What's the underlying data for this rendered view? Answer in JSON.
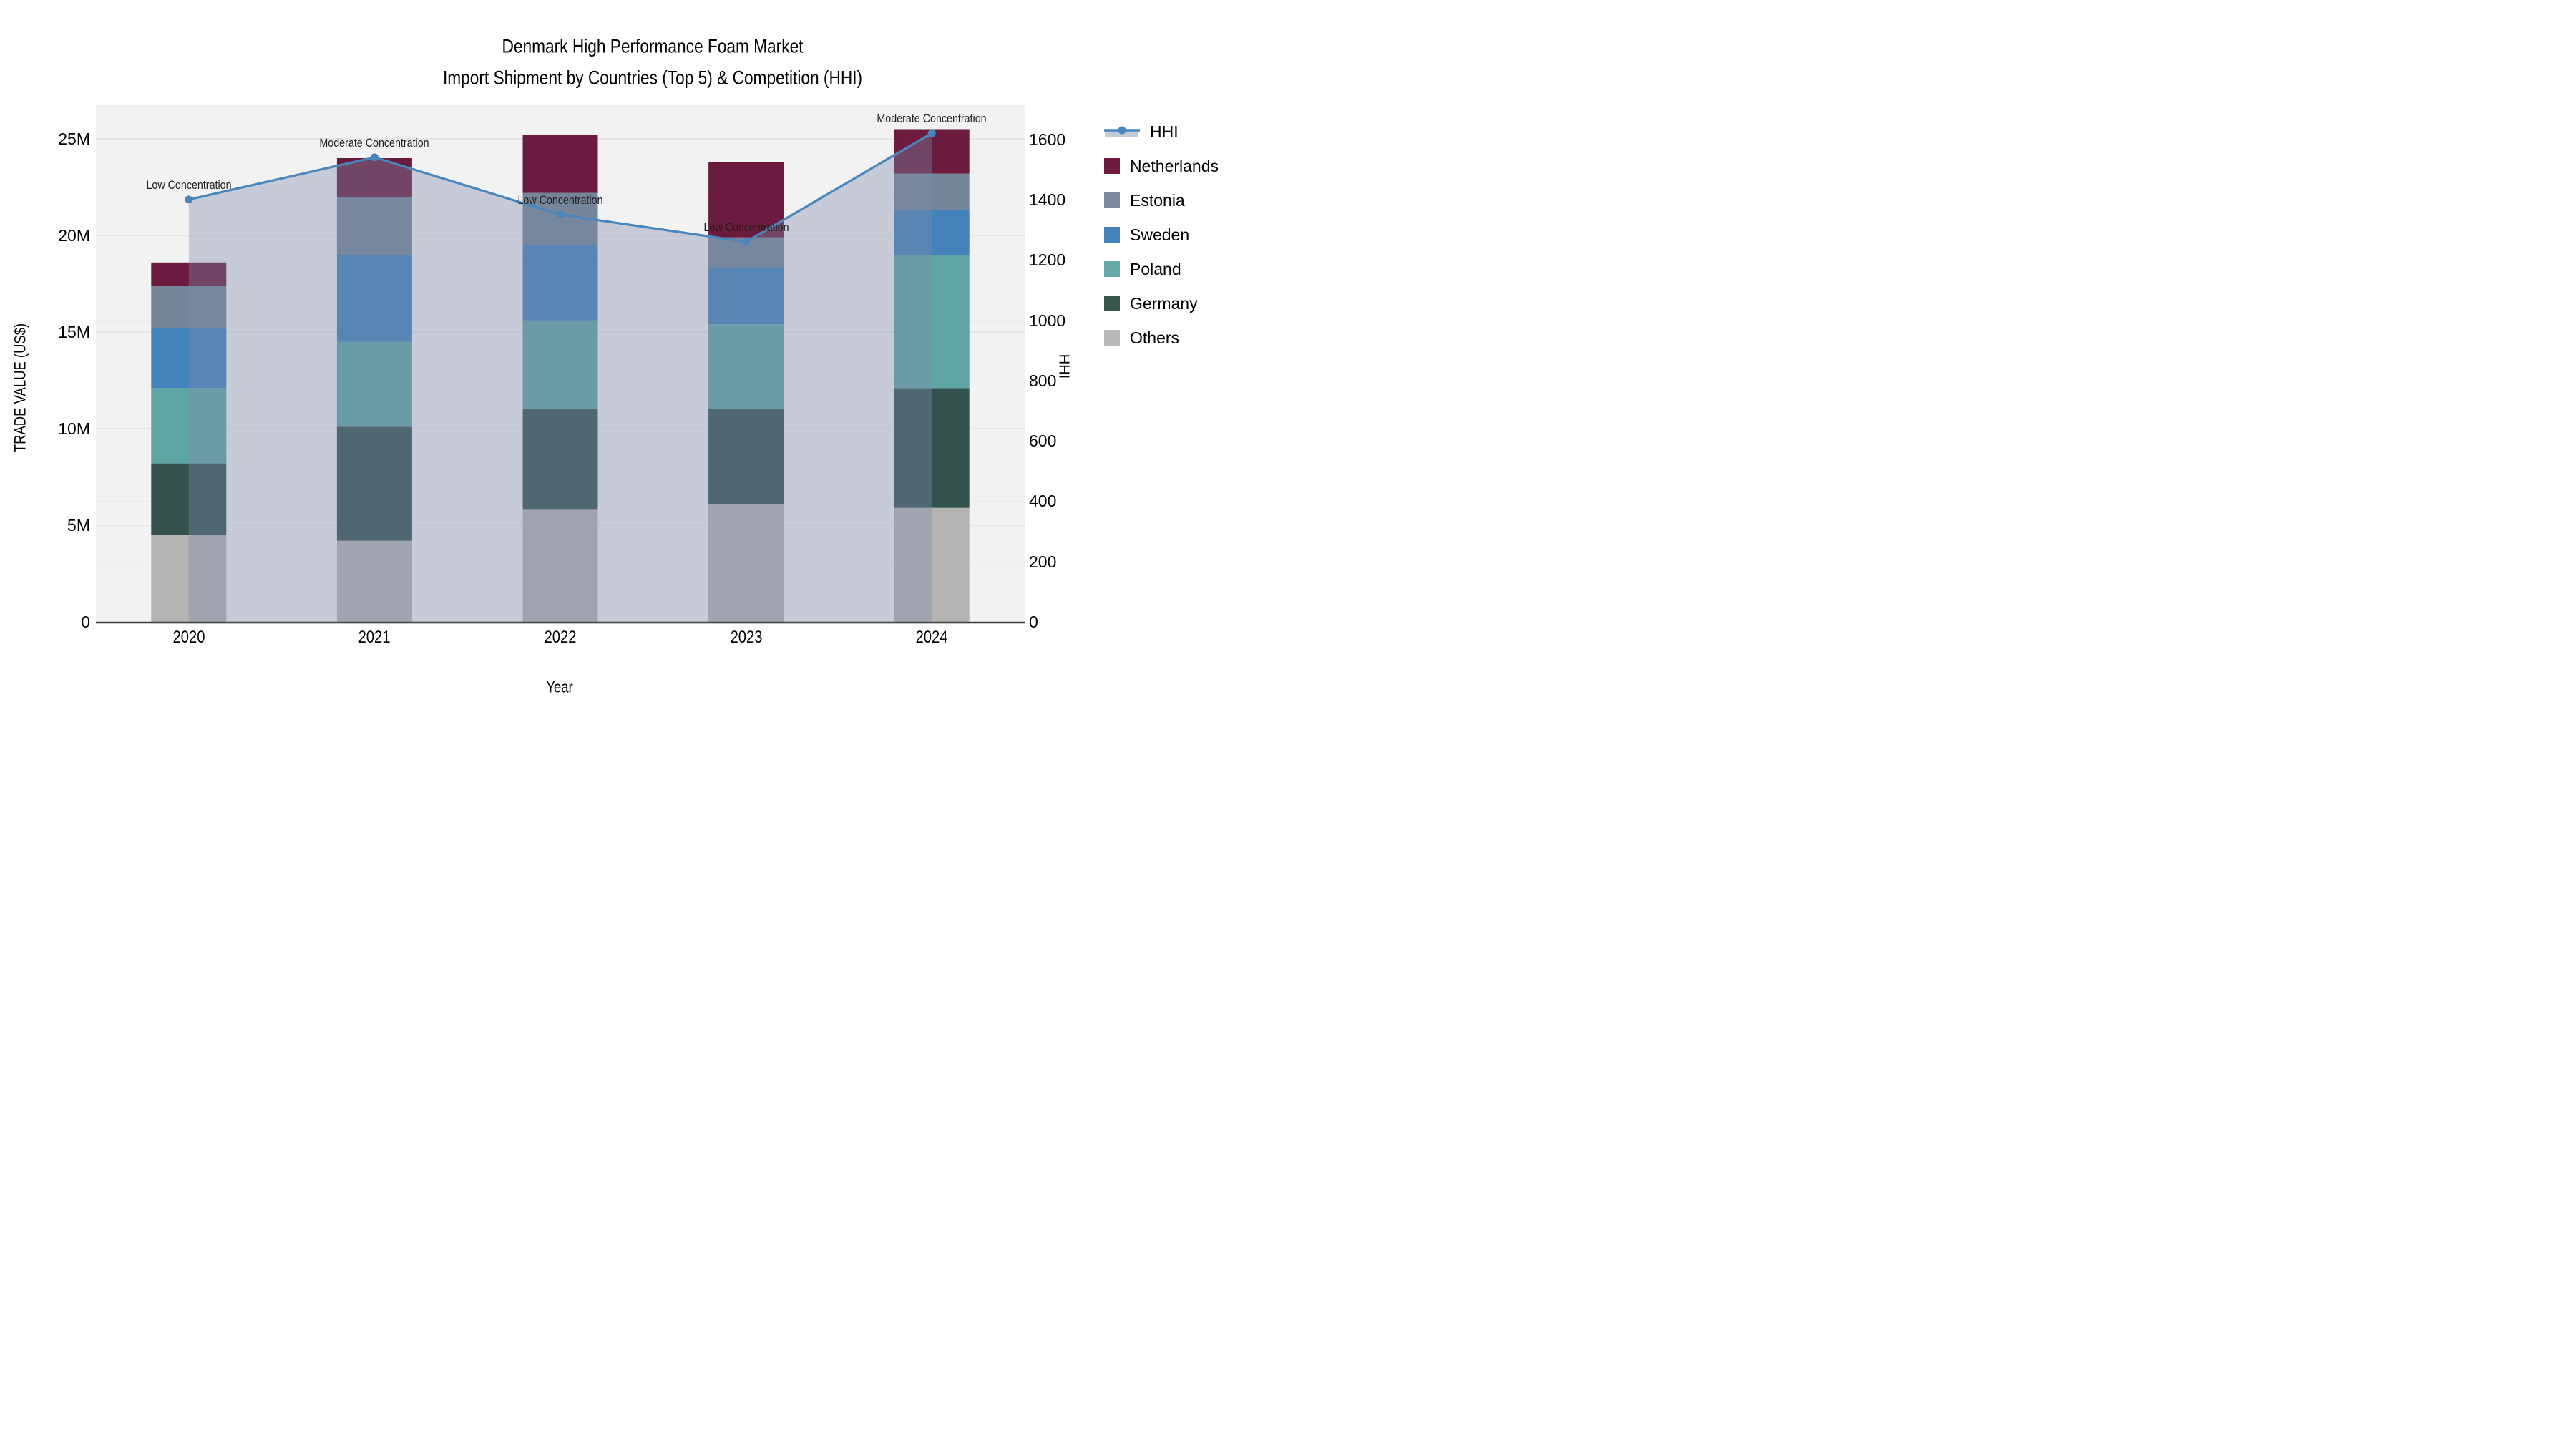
{
  "title_line1": "Denmark High Performance Foam Market",
  "title_line2": "Import Shipment by Countries (Top 5) & Competition (HHI)",
  "axes": {
    "x_title": "Year",
    "y_left_title": "TRADE VALUE (US$)",
    "y_right_title": "HHI",
    "y_left_ticks": [
      "0",
      "5M",
      "10M",
      "15M",
      "20M",
      "25M"
    ],
    "y_left_tick_values": [
      0,
      5,
      10,
      15,
      20,
      25
    ],
    "y_right_ticks": [
      "0",
      "200",
      "400",
      "600",
      "800",
      "1000",
      "1200",
      "1400",
      "1600"
    ],
    "y_right_tick_values": [
      0,
      200,
      400,
      600,
      800,
      1000,
      1200,
      1400,
      1600
    ]
  },
  "chart_data": {
    "type": "combo: stacked-bar (left axis) + line-with-area (right axis)",
    "categories": [
      "2020",
      "2021",
      "2022",
      "2023",
      "2024"
    ],
    "bar_value_unit": "million US$ trade value",
    "series": [
      {
        "name": "Others",
        "color": "#B5B4B2",
        "values": [
          4.5,
          4.2,
          5.8,
          6.1,
          5.9
        ]
      },
      {
        "name": "Germany",
        "color": "#33524D",
        "values": [
          3.7,
          5.9,
          5.2,
          4.9,
          6.2
        ]
      },
      {
        "name": "Poland",
        "color": "#5FA5A4",
        "values": [
          3.9,
          4.4,
          4.6,
          4.4,
          6.9
        ]
      },
      {
        "name": "Sweden",
        "color": "#4382BB",
        "values": [
          3.1,
          4.5,
          3.9,
          2.9,
          2.3
        ]
      },
      {
        "name": "Estonia",
        "color": "#75859A",
        "values": [
          2.2,
          3.0,
          2.7,
          1.6,
          1.9
        ]
      },
      {
        "name": "Netherlands",
        "color": "#6B1B3D",
        "values": [
          1.2,
          2.0,
          3.0,
          3.9,
          2.3
        ]
      }
    ],
    "stack_order_note": "series listed bottom-to-top",
    "bar_totals_millions": [
      18.6,
      24.0,
      25.2,
      23.8,
      25.5
    ],
    "line_series": {
      "name": "HHI",
      "color": "#4A86BE",
      "area_fill": "rgba(125,140,170,0.38)",
      "values": [
        1400,
        1540,
        1350,
        1260,
        1620
      ]
    },
    "annotations": [
      "Low Concentration",
      "Moderate Concentration",
      "Low Concentration",
      "Low Concentration",
      "Moderate Concentration"
    ],
    "ylim_left_millions": [
      0,
      26.7
    ],
    "ylim_right_hhi": [
      0,
      1712
    ],
    "grid": true,
    "legend_position": "outside-right-top"
  },
  "legend": {
    "items": [
      {
        "label": "HHI",
        "type": "line",
        "color": "#4A86BE",
        "band_color": "#C3CBD9"
      },
      {
        "label": "Netherlands",
        "type": "swatch",
        "color": "#6B1B3D"
      },
      {
        "label": "Estonia",
        "type": "swatch",
        "color": "#7A8A9B"
      },
      {
        "label": "Sweden",
        "type": "swatch",
        "color": "#4382BB"
      },
      {
        "label": "Poland",
        "type": "swatch",
        "color": "#66A9A7"
      },
      {
        "label": "Germany",
        "type": "swatch",
        "color": "#39564F"
      },
      {
        "label": "Others",
        "type": "swatch",
        "color": "#B9B9B9"
      }
    ]
  },
  "colors": {
    "plot_bg": "#F2F2F2",
    "grid_left": "#E2E2E2",
    "grid_right": "#ECECEC",
    "axis_line": "#444444",
    "text": "#000000",
    "annotation_text": "#1F1F1F"
  }
}
